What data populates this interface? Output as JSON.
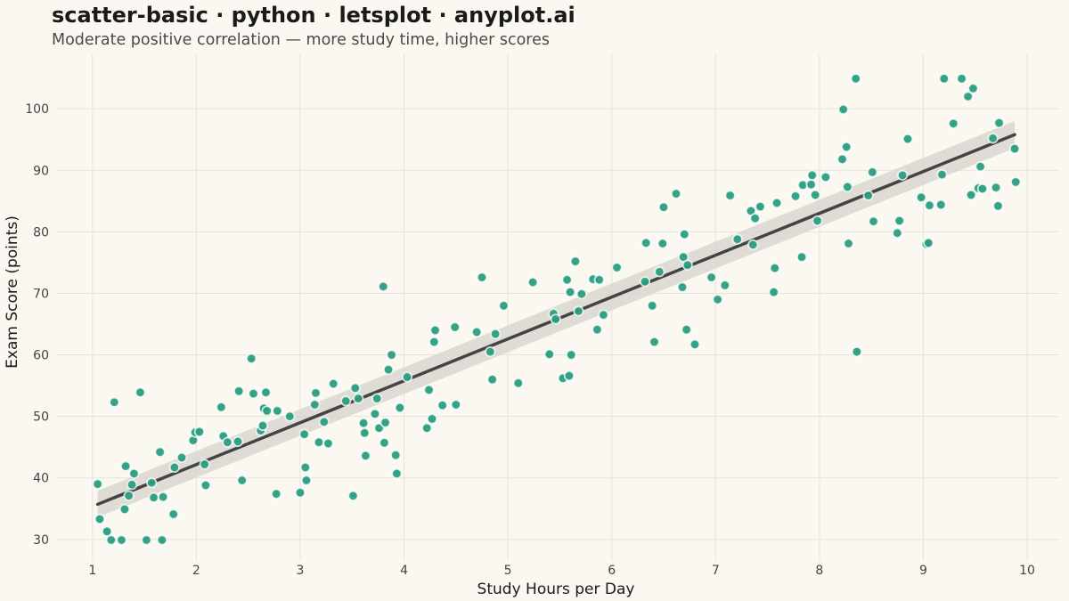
{
  "chart_data": {
    "type": "scatter",
    "title": "scatter-basic · python · letsplot · anyplot.ai",
    "subtitle": "Moderate positive correlation — more study time, higher scores",
    "xlabel": "Study Hours per Day",
    "ylabel": "Exam Score (points)",
    "xlim": [
      0.65,
      10.3
    ],
    "ylim": [
      26.5,
      109
    ],
    "xticks": [
      "1",
      "2",
      "3",
      "4",
      "5",
      "6",
      "7",
      "8",
      "9",
      "10"
    ],
    "yticks": [
      "30",
      "40",
      "50",
      "60",
      "70",
      "80",
      "90",
      "100"
    ],
    "grid": true,
    "legend": "none",
    "point_color": "#2A9D7F",
    "point_edge_color": "#FFFFFF",
    "trend_line_color": "#444444",
    "confidence_band_color": "#D9D6D0",
    "trend_line": {
      "x": [
        1.05,
        9.88
      ],
      "y": [
        35.7,
        95.8
      ]
    },
    "confidence_band": {
      "x": [
        1.05,
        9.88
      ],
      "lower": [
        33.6,
        93.6
      ],
      "upper": [
        37.9,
        98.0
      ]
    },
    "x": [
      1.05,
      1.07,
      1.14,
      1.18,
      1.21,
      1.28,
      1.31,
      1.32,
      1.35,
      1.38,
      1.4,
      1.46,
      1.52,
      1.57,
      1.59,
      1.65,
      1.67,
      1.68,
      1.78,
      1.79,
      1.86,
      1.97,
      1.99,
      2.03,
      2.08,
      2.09,
      2.24,
      2.26,
      2.3,
      2.4,
      2.41,
      2.44,
      2.53,
      2.55,
      2.62,
      2.64,
      2.65,
      2.67,
      2.68,
      2.77,
      2.78,
      2.9,
      3.0,
      3.04,
      3.05,
      3.06,
      3.14,
      3.15,
      3.18,
      3.23,
      3.27,
      3.32,
      3.44,
      3.51,
      3.53,
      3.56,
      3.61,
      3.62,
      3.63,
      3.72,
      3.74,
      3.76,
      3.8,
      3.81,
      3.82,
      3.85,
      3.88,
      3.92,
      3.93,
      3.96,
      4.03,
      4.22,
      4.24,
      4.27,
      4.29,
      4.3,
      4.37,
      4.49,
      4.5,
      4.7,
      4.75,
      4.83,
      4.85,
      4.88,
      4.96,
      5.1,
      5.24,
      5.4,
      5.44,
      5.46,
      5.53,
      5.57,
      5.59,
      5.6,
      5.61,
      5.65,
      5.68,
      5.71,
      5.82,
      5.86,
      5.88,
      5.92,
      6.05,
      6.32,
      6.33,
      6.39,
      6.41,
      6.46,
      6.49,
      6.5,
      6.62,
      6.68,
      6.69,
      6.7,
      6.72,
      6.73,
      6.8,
      6.96,
      7.02,
      7.09,
      7.14,
      7.21,
      7.34,
      7.36,
      7.38,
      7.43,
      7.56,
      7.57,
      7.59,
      7.77,
      7.83,
      7.84,
      7.92,
      7.93,
      7.96,
      7.98,
      8.06,
      8.22,
      8.23,
      8.26,
      8.27,
      8.28,
      8.35,
      8.36,
      8.47,
      8.51,
      8.52,
      8.75,
      8.77,
      8.8,
      8.85,
      8.98,
      9.03,
      9.05,
      9.06,
      9.17,
      9.18,
      9.2,
      9.29,
      9.37,
      9.43,
      9.46,
      9.48,
      9.53,
      9.55,
      9.57,
      9.67,
      9.7,
      9.72,
      9.73,
      9.88,
      9.89
    ],
    "y": [
      39.0,
      33.3,
      31.3,
      29.9,
      52.3,
      29.9,
      34.9,
      41.9,
      37.1,
      38.9,
      40.7,
      53.9,
      29.9,
      39.2,
      36.8,
      44.2,
      29.9,
      36.9,
      34.1,
      41.7,
      43.3,
      46.1,
      47.4,
      47.5,
      42.2,
      38.8,
      51.5,
      46.8,
      45.8,
      45.9,
      54.1,
      39.6,
      59.4,
      53.7,
      47.7,
      48.5,
      51.3,
      53.9,
      50.9,
      37.4,
      50.9,
      50.0,
      37.6,
      47.1,
      41.7,
      39.6,
      51.9,
      53.8,
      45.8,
      49.1,
      45.6,
      55.3,
      52.5,
      37.1,
      54.6,
      52.9,
      48.9,
      47.3,
      43.6,
      50.4,
      52.9,
      48.1,
      71.1,
      45.7,
      49.0,
      57.6,
      60.0,
      43.7,
      40.7,
      51.4,
      56.4,
      48.1,
      54.3,
      49.6,
      62.1,
      64.0,
      51.8,
      64.5,
      51.9,
      63.7,
      72.6,
      60.5,
      56.0,
      63.4,
      68.0,
      55.4,
      71.8,
      60.1,
      66.7,
      65.8,
      56.2,
      72.2,
      56.6,
      70.2,
      60.0,
      75.2,
      67.1,
      69.9,
      72.3,
      64.1,
      72.2,
      66.5,
      74.2,
      71.9,
      78.2,
      68.0,
      62.1,
      73.5,
      78.1,
      84.0,
      86.2,
      71.0,
      75.9,
      79.6,
      64.1,
      74.6,
      61.7,
      72.6,
      69.0,
      71.3,
      85.9,
      78.8,
      83.4,
      77.9,
      82.2,
      84.1,
      70.2,
      74.1,
      84.7,
      85.8,
      75.9,
      87.6,
      87.7,
      89.2,
      86.0,
      81.8,
      88.9,
      91.8,
      99.9,
      93.8,
      87.3,
      78.1,
      104.9,
      60.5,
      85.9,
      89.7,
      81.7,
      79.8,
      81.8,
      89.2,
      95.1,
      85.6,
      78.0,
      78.2,
      84.3,
      84.4,
      89.3,
      104.9,
      97.6,
      104.9,
      102.0,
      86.0,
      103.3,
      87.1,
      90.6,
      87.0,
      95.2,
      87.2,
      84.2,
      97.7,
      93.5,
      88.1
    ]
  }
}
